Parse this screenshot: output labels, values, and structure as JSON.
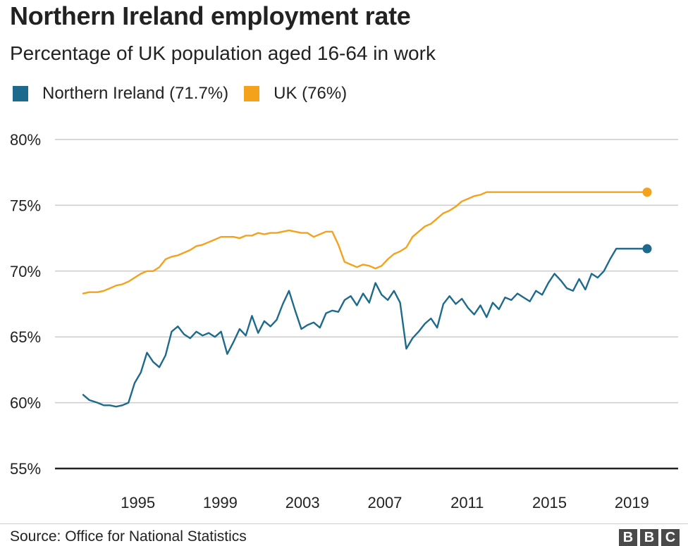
{
  "header": {
    "title": "Northern Ireland employment rate",
    "subtitle": "Percentage of UK population aged 16-64 in work"
  },
  "legend": {
    "items": [
      {
        "label": "Northern Ireland (71.7%)",
        "color": "#1d6a8c"
      },
      {
        "label": "UK (76%)",
        "color": "#f4a21b"
      }
    ]
  },
  "footer": {
    "source": "Source: Office for National Statistics",
    "logo_letters": [
      "B",
      "B",
      "C"
    ]
  },
  "chart_data": {
    "type": "line",
    "title": "Northern Ireland employment rate",
    "subtitle": "Percentage of UK population aged 16-64 in work",
    "xlabel": "",
    "ylabel": "",
    "xlim": [
      1992.0,
      2019.4
    ],
    "ylim": [
      55,
      80
    ],
    "y_ticks": [
      55,
      60,
      65,
      70,
      75,
      80
    ],
    "y_tick_labels": [
      "55%",
      "60%",
      "65%",
      "70%",
      "75%",
      "80%"
    ],
    "x_ticks": [
      1995,
      1999,
      2003,
      2007,
      2011,
      2015,
      2019
    ],
    "x_tick_labels": [
      "1995",
      "1999",
      "2003",
      "2007",
      "2011",
      "2015",
      "2019"
    ],
    "grid": true,
    "legend_position": "top-left",
    "series": [
      {
        "name": "Northern Ireland (71.7%)",
        "color": "#1d6a8c",
        "x": [
          1992.0,
          1992.3,
          1992.7,
          1993.0,
          1993.3,
          1993.6,
          1993.9,
          1994.2,
          1994.5,
          1994.8,
          1995.1,
          1995.4,
          1995.7,
          1996.0,
          1996.3,
          1996.6,
          1996.9,
          1997.2,
          1997.5,
          1997.8,
          1998.1,
          1998.4,
          1998.7,
          1999.0,
          1999.3,
          1999.6,
          1999.9,
          2000.2,
          2000.5,
          2000.8,
          2001.1,
          2001.4,
          2001.7,
          2002.0,
          2002.3,
          2002.6,
          2002.9,
          2003.2,
          2003.5,
          2003.8,
          2004.1,
          2004.4,
          2004.7,
          2005.0,
          2005.3,
          2005.6,
          2005.9,
          2006.2,
          2006.5,
          2006.8,
          2007.1,
          2007.4,
          2007.7,
          2008.0,
          2008.3,
          2008.6,
          2008.9,
          2009.2,
          2009.5,
          2009.8,
          2010.1,
          2010.4,
          2010.7,
          2011.0,
          2011.3,
          2011.6,
          2011.9,
          2012.2,
          2012.5,
          2012.8,
          2013.1,
          2013.4,
          2013.7,
          2014.0,
          2014.3,
          2014.6,
          2014.9,
          2015.2,
          2015.5,
          2015.8,
          2016.1,
          2016.4,
          2016.7,
          2017.0,
          2017.3,
          2017.6,
          2017.9,
          2018.2,
          2018.5,
          2018.8,
          2019.1,
          2019.4
        ],
        "values": [
          60.6,
          60.2,
          60.0,
          59.8,
          59.8,
          59.7,
          59.8,
          60.0,
          61.5,
          62.3,
          63.8,
          63.1,
          62.7,
          63.6,
          65.4,
          65.8,
          65.2,
          64.9,
          65.4,
          65.1,
          65.3,
          65.0,
          65.4,
          63.7,
          64.6,
          65.6,
          65.1,
          66.6,
          65.3,
          66.2,
          65.8,
          66.3,
          67.5,
          68.5,
          67.0,
          65.6,
          65.9,
          66.1,
          65.7,
          66.8,
          67.0,
          66.9,
          67.8,
          68.1,
          67.4,
          68.3,
          67.6,
          69.1,
          68.2,
          67.8,
          68.5,
          67.6,
          64.1,
          64.9,
          65.4,
          66.0,
          66.4,
          65.7,
          67.5,
          68.1,
          67.5,
          67.9,
          67.2,
          66.7,
          67.4,
          66.5,
          67.6,
          67.1,
          68.0,
          67.8,
          68.3,
          68.0,
          67.7,
          68.5,
          68.2,
          69.1,
          69.8,
          69.3,
          68.7,
          68.5,
          69.4,
          68.6,
          69.8,
          69.5,
          70.0,
          70.9,
          71.7,
          71.7,
          71.7,
          71.7,
          71.7,
          71.7
        ]
      },
      {
        "name": "UK (76%)",
        "color": "#f4a21b",
        "x": [
          1992.0,
          1992.3,
          1992.7,
          1993.0,
          1993.3,
          1993.6,
          1993.9,
          1994.2,
          1994.5,
          1994.8,
          1995.1,
          1995.4,
          1995.7,
          1996.0,
          1996.3,
          1996.6,
          1996.9,
          1997.2,
          1997.5,
          1997.8,
          1998.1,
          1998.4,
          1998.7,
          1999.0,
          1999.3,
          1999.6,
          1999.9,
          2000.2,
          2000.5,
          2000.8,
          2001.1,
          2001.4,
          2001.7,
          2002.0,
          2002.3,
          2002.6,
          2002.9,
          2003.2,
          2003.5,
          2003.8,
          2004.1,
          2004.4,
          2004.7,
          2005.0,
          2005.3,
          2005.6,
          2005.9,
          2006.2,
          2006.5,
          2006.8,
          2007.1,
          2007.4,
          2007.7,
          2008.0,
          2008.3,
          2008.6,
          2008.9,
          2009.2,
          2009.5,
          2009.8,
          2010.1,
          2010.4,
          2010.7,
          2011.0,
          2011.3,
          2011.6,
          2011.9,
          2012.2,
          2012.5,
          2012.8,
          2013.1,
          2013.4,
          2013.7,
          2014.0,
          2014.3,
          2014.6,
          2014.9,
          2015.2,
          2015.5,
          2015.8,
          2016.1,
          2016.4,
          2016.7,
          2017.0,
          2017.3,
          2017.6,
          2017.9,
          2018.2,
          2018.5,
          2018.8,
          2019.1,
          2019.4
        ],
        "values": [
          68.3,
          68.4,
          68.4,
          68.5,
          68.7,
          68.9,
          69.0,
          69.2,
          69.5,
          69.8,
          70.0,
          70.0,
          70.3,
          70.9,
          71.1,
          71.2,
          71.4,
          71.6,
          71.9,
          72.0,
          72.2,
          72.4,
          72.6,
          72.6,
          72.6,
          72.5,
          72.7,
          72.7,
          72.9,
          72.8,
          72.9,
          72.9,
          73.0,
          73.1,
          73.0,
          72.9,
          72.9,
          72.6,
          72.8,
          73.0,
          73.0,
          72.0,
          70.7,
          70.5,
          70.3,
          70.5,
          70.4,
          70.2,
          70.4,
          70.9,
          71.3,
          71.5,
          71.8,
          72.6,
          73.0,
          73.4,
          73.6,
          74.0,
          74.4,
          74.6,
          74.9,
          75.3,
          75.5,
          75.7,
          75.8,
          76.0,
          76.0,
          76.0,
          76.0,
          76.0,
          76.0,
          76.0,
          76.0,
          76.0,
          76.0,
          76.0,
          76.0,
          76.0,
          76.0,
          76.0,
          76.0,
          76.0,
          76.0,
          76.0,
          76.0,
          76.0,
          76.0,
          76.0,
          76.0,
          76.0,
          76.0,
          76.0
        ]
      }
    ]
  }
}
